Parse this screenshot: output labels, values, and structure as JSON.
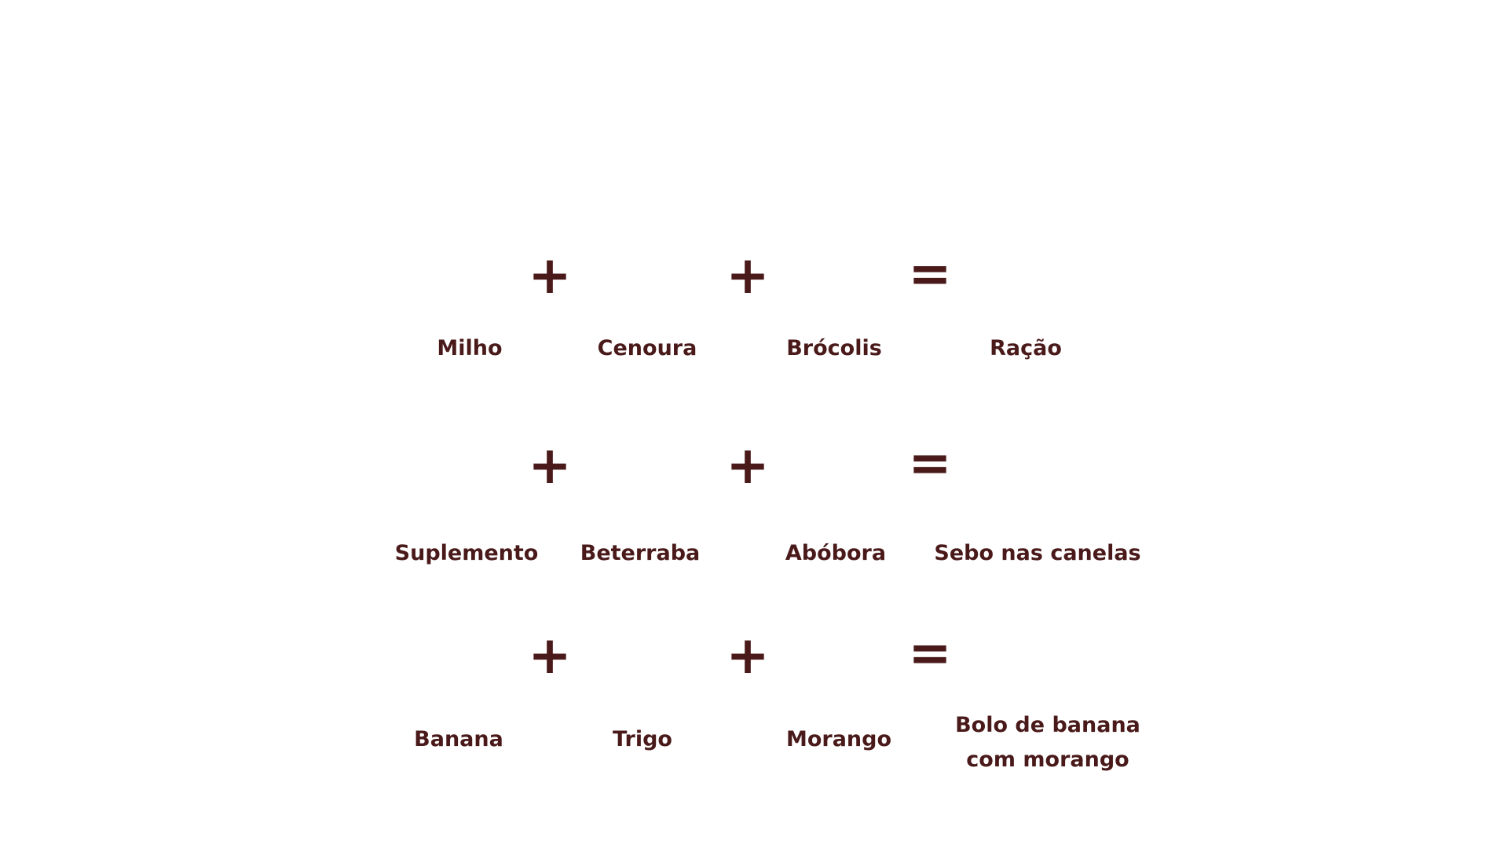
{
  "colors": {
    "background": "#ffffff",
    "text": "#4a1a1a"
  },
  "recipes": [
    {
      "ingredients": [
        "Milho",
        "Cenoura",
        "Brócolis"
      ],
      "result": "Ração",
      "plus_symbol": "+",
      "equals_symbol": "="
    },
    {
      "ingredients": [
        "Suplemento",
        "Beterraba",
        "Abóbora"
      ],
      "result": "Sebo nas canelas",
      "plus_symbol": "+",
      "equals_symbol": "="
    },
    {
      "ingredients": [
        "Banana",
        "Trigo",
        "Morango"
      ],
      "result": "Bolo de banana com morango",
      "plus_symbol": "+",
      "equals_symbol": "="
    }
  ]
}
